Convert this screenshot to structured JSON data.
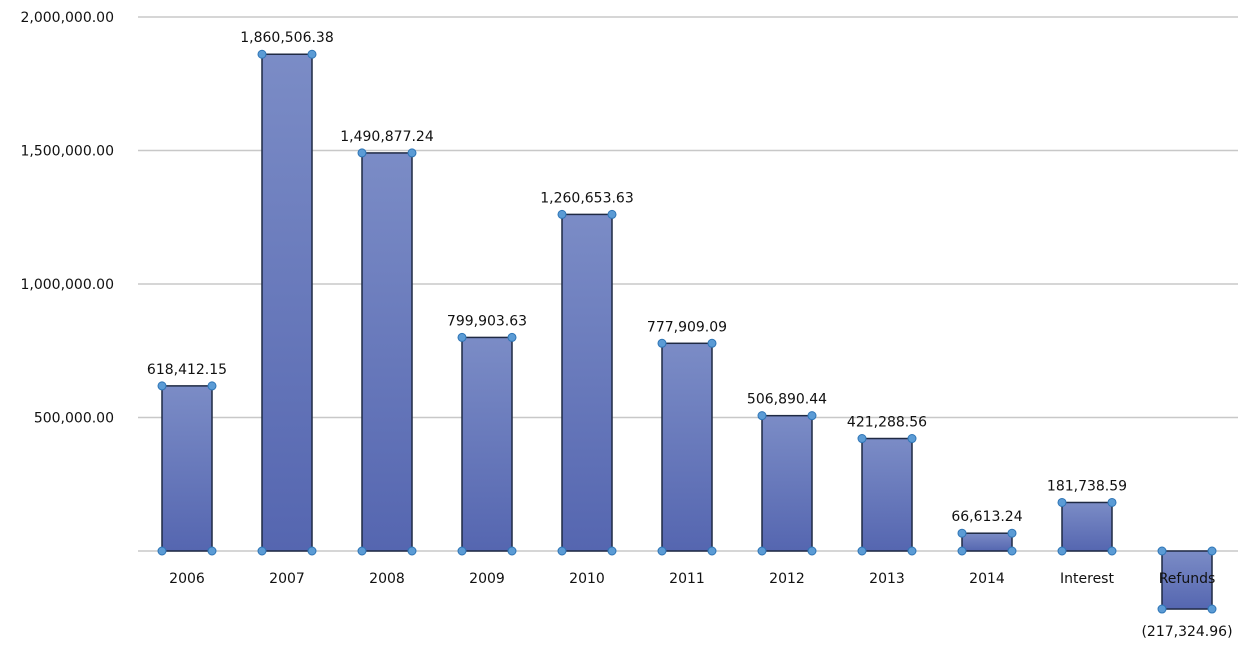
{
  "chart_data": {
    "type": "bar",
    "categories": [
      "2006",
      "2007",
      "2008",
      "2009",
      "2010",
      "2011",
      "2012",
      "2013",
      "2014",
      "Interest",
      "Refunds"
    ],
    "values": [
      618412.15,
      1860506.38,
      1490877.24,
      799903.63,
      1260653.63,
      777909.09,
      506890.44,
      421288.56,
      66613.24,
      181738.59,
      -217324.96
    ],
    "data_labels": [
      "618,412.15",
      "1,860,506.38",
      "1,490,877.24",
      "799,903.63",
      "1,260,653.63",
      "777,909.09",
      "506,890.44",
      "421,288.56",
      "66,613.24",
      "181,738.59",
      "(217,324.96)"
    ],
    "y_ticks": [
      500000,
      1000000,
      1500000,
      2000000
    ],
    "y_tick_labels": [
      "500,000.00",
      "1,000,000.00",
      "1,500,000.00",
      "2,000,000.00"
    ],
    "ylim": [
      -217324.96,
      2000000
    ],
    "grid": true,
    "title": "",
    "xlabel": "",
    "ylabel": "",
    "colors": {
      "bar_top": "#7b8cc6",
      "bar_bottom": "#5566b0",
      "bar_edge": "#1f2a44",
      "grid": "#c8c8c8",
      "handle": "#5b9bd5"
    }
  }
}
